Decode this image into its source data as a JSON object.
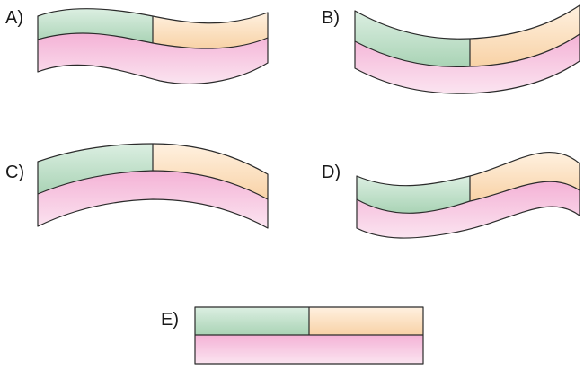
{
  "colors": {
    "green_top": "#dcefe2",
    "green_bottom": "#a9d3b5",
    "orange_top": "#fff1e0",
    "orange_bottom": "#f8d2a6",
    "pink_top": "#f4b2d6",
    "pink_bottom": "#fbe4f0",
    "outline": "#2b2b2b"
  },
  "options": [
    {
      "label": "A)"
    },
    {
      "label": "B)"
    },
    {
      "label": "C)"
    },
    {
      "label": "D)"
    },
    {
      "label": "E)"
    }
  ]
}
